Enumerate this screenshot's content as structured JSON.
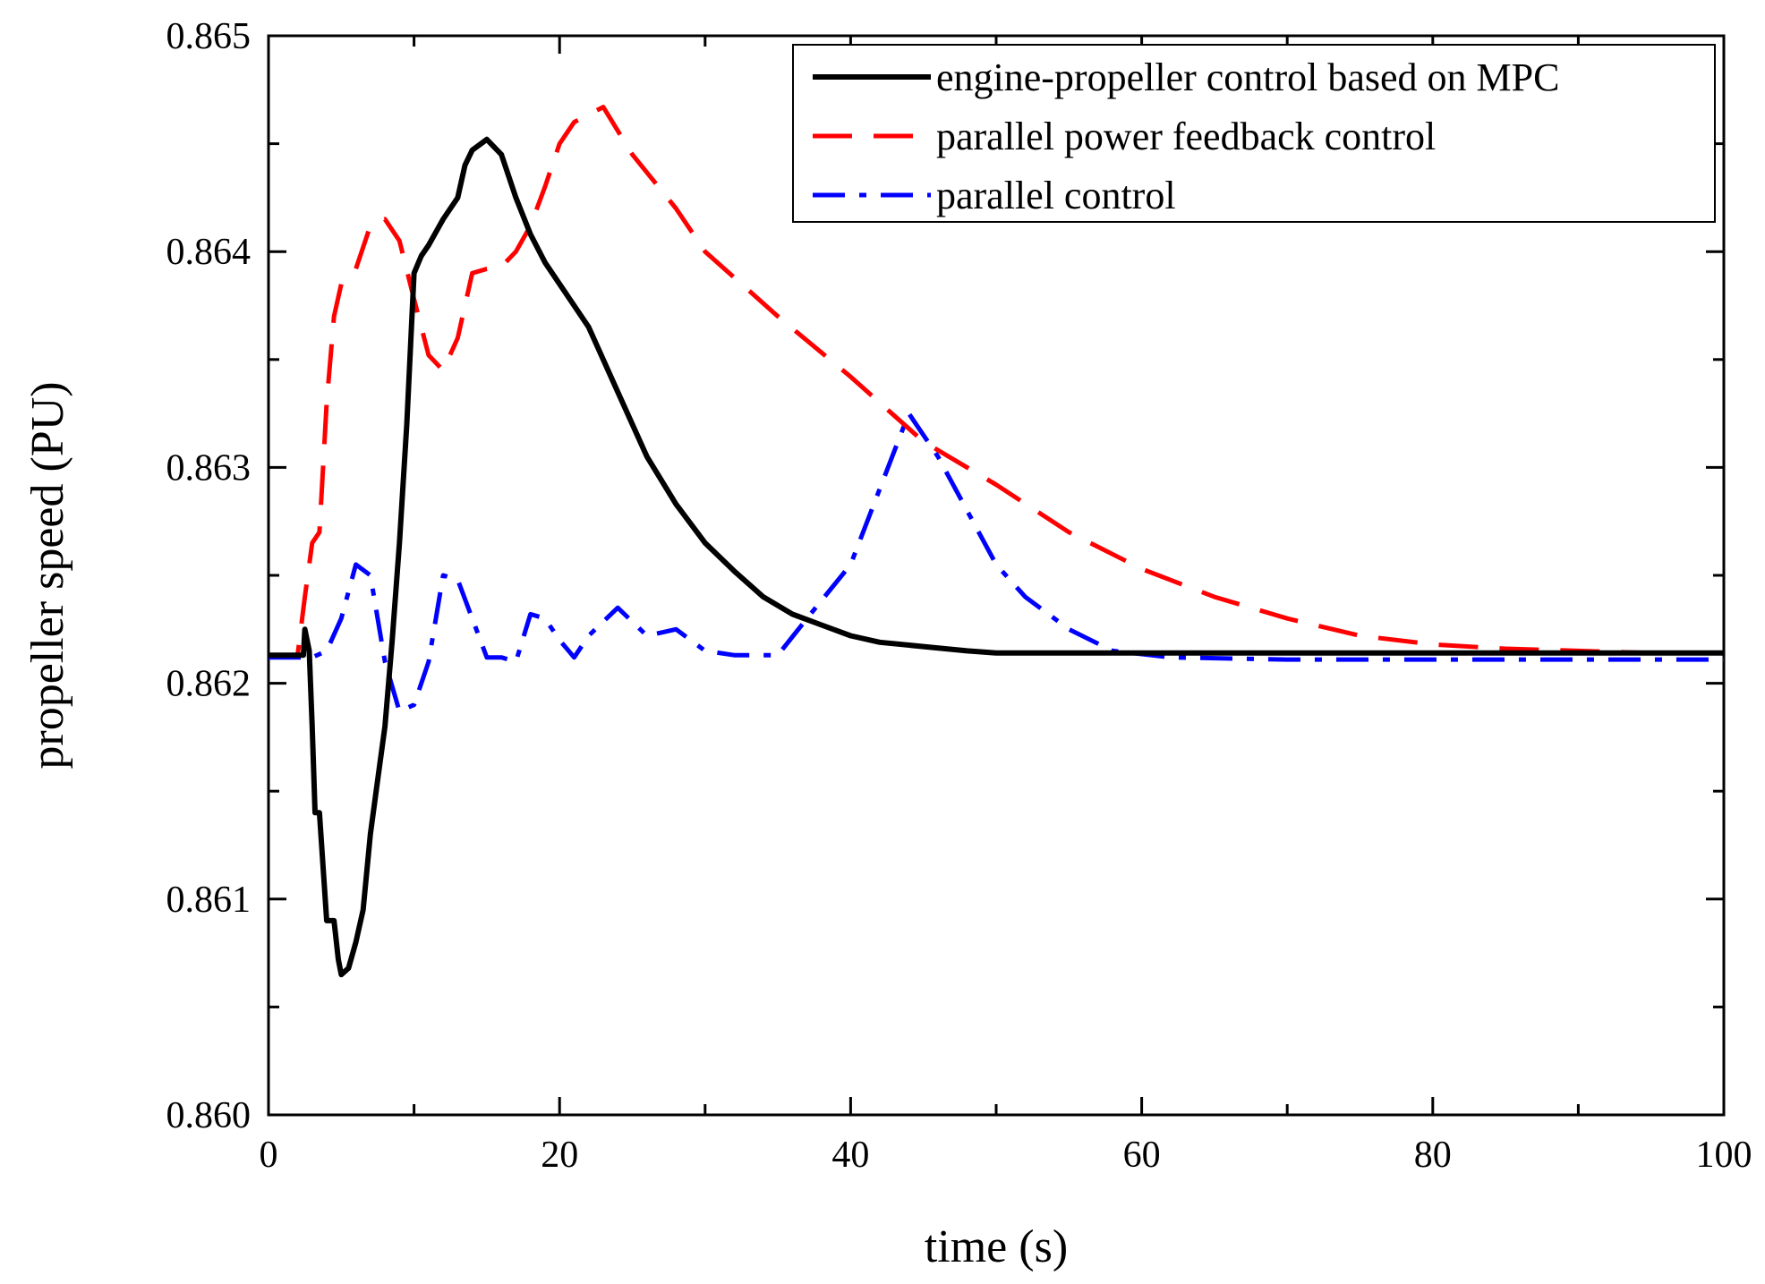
{
  "chart_data": {
    "type": "line",
    "title": "",
    "xlabel": "time (s)",
    "ylabel": "propeller speed (PU)",
    "xlim": [
      0,
      100
    ],
    "ylim": [
      0.86,
      0.865
    ],
    "x_major_ticks": [
      0,
      20,
      40,
      60,
      80,
      100
    ],
    "x_tick_labels": [
      "0",
      "20",
      "40",
      "60",
      "80",
      "100"
    ],
    "y_major_ticks": [
      0.86,
      0.861,
      0.862,
      0.863,
      0.864,
      0.865
    ],
    "y_tick_labels": [
      "0.860",
      "0.861",
      "0.862",
      "0.863",
      "0.864",
      "0.865"
    ],
    "grid": false,
    "legend_position": "top-right",
    "series": [
      {
        "name": "engine-propeller control based on MPC",
        "color": "#000000",
        "dash": "solid",
        "points": [
          [
            0,
            0.86213
          ],
          [
            2.4,
            0.86213
          ],
          [
            2.5,
            0.86225
          ],
          [
            2.8,
            0.86215
          ],
          [
            3.0,
            0.8618
          ],
          [
            3.2,
            0.8614
          ],
          [
            3.5,
            0.8614
          ],
          [
            4.0,
            0.8609
          ],
          [
            4.5,
            0.8609
          ],
          [
            4.8,
            0.86072
          ],
          [
            5.0,
            0.86065
          ],
          [
            5.5,
            0.86068
          ],
          [
            6.0,
            0.8608
          ],
          [
            6.5,
            0.86095
          ],
          [
            7.0,
            0.8613
          ],
          [
            7.5,
            0.86155
          ],
          [
            8.0,
            0.8618
          ],
          [
            8.5,
            0.8622
          ],
          [
            9.0,
            0.86265
          ],
          [
            9.5,
            0.8632
          ],
          [
            10.0,
            0.8639
          ],
          [
            10.5,
            0.86398
          ],
          [
            11.0,
            0.86403
          ],
          [
            12.0,
            0.86415
          ],
          [
            13.0,
            0.86425
          ],
          [
            13.5,
            0.8644
          ],
          [
            14.0,
            0.86447
          ],
          [
            15.0,
            0.86452
          ],
          [
            16.0,
            0.86445
          ],
          [
            17.0,
            0.86425
          ],
          [
            18.0,
            0.86408
          ],
          [
            19.0,
            0.86395
          ],
          [
            20.0,
            0.86385
          ],
          [
            22.0,
            0.86365
          ],
          [
            24.0,
            0.86335
          ],
          [
            26.0,
            0.86305
          ],
          [
            28.0,
            0.86283
          ],
          [
            30.0,
            0.86265
          ],
          [
            32.0,
            0.86252
          ],
          [
            34.0,
            0.8624
          ],
          [
            36.0,
            0.86232
          ],
          [
            38.0,
            0.86227
          ],
          [
            40.0,
            0.86222
          ],
          [
            42.0,
            0.86219
          ],
          [
            45.0,
            0.86217
          ],
          [
            48.0,
            0.86215
          ],
          [
            50.0,
            0.86214
          ],
          [
            60.0,
            0.86214
          ],
          [
            80.0,
            0.86214
          ],
          [
            100.0,
            0.86214
          ]
        ]
      },
      {
        "name": "parallel power feedback control",
        "color": "#ff0000",
        "dash": "dashed",
        "points": [
          [
            0,
            0.86213
          ],
          [
            2.0,
            0.86213
          ],
          [
            2.5,
            0.8624
          ],
          [
            3.0,
            0.86265
          ],
          [
            3.5,
            0.8627
          ],
          [
            4.0,
            0.8633
          ],
          [
            4.5,
            0.8637
          ],
          [
            5.0,
            0.86385
          ],
          [
            6.0,
            0.86392
          ],
          [
            7.0,
            0.86412
          ],
          [
            8.0,
            0.86415
          ],
          [
            9.0,
            0.86405
          ],
          [
            10.0,
            0.86378
          ],
          [
            11.0,
            0.86352
          ],
          [
            12.0,
            0.86345
          ],
          [
            13.0,
            0.8636
          ],
          [
            14.0,
            0.8639
          ],
          [
            15.0,
            0.86392
          ],
          [
            16.0,
            0.86393
          ],
          [
            17.0,
            0.864
          ],
          [
            18.0,
            0.86412
          ],
          [
            19.0,
            0.8643
          ],
          [
            20.0,
            0.8645
          ],
          [
            21.0,
            0.8646
          ],
          [
            23.0,
            0.86467
          ],
          [
            25.0,
            0.86445
          ],
          [
            28.0,
            0.8642
          ],
          [
            30.0,
            0.864
          ],
          [
            35.0,
            0.8637
          ],
          [
            40.0,
            0.86342
          ],
          [
            45.0,
            0.86312
          ],
          [
            50.0,
            0.86292
          ],
          [
            55.0,
            0.8627
          ],
          [
            60.0,
            0.86253
          ],
          [
            65.0,
            0.8624
          ],
          [
            70.0,
            0.8623
          ],
          [
            75.0,
            0.86222
          ],
          [
            80.0,
            0.86218
          ],
          [
            85.0,
            0.86216
          ],
          [
            90.0,
            0.86215
          ],
          [
            95.0,
            0.86214
          ],
          [
            100.0,
            0.86214
          ]
        ]
      },
      {
        "name": "parallel control",
        "color": "#0000ff",
        "dash": "dashdot",
        "points": [
          [
            0,
            0.86212
          ],
          [
            2.0,
            0.86212
          ],
          [
            3.0,
            0.86212
          ],
          [
            4.0,
            0.86215
          ],
          [
            5.0,
            0.8623
          ],
          [
            6.0,
            0.86255
          ],
          [
            7.0,
            0.8625
          ],
          [
            8.0,
            0.8621
          ],
          [
            9.0,
            0.86187
          ],
          [
            10.0,
            0.8619
          ],
          [
            11.0,
            0.8621
          ],
          [
            12.0,
            0.8625
          ],
          [
            13.0,
            0.86248
          ],
          [
            14.0,
            0.8623
          ],
          [
            15.0,
            0.86212
          ],
          [
            16.0,
            0.86212
          ],
          [
            17.0,
            0.8621
          ],
          [
            18.0,
            0.86232
          ],
          [
            19.0,
            0.8623
          ],
          [
            20.0,
            0.8622
          ],
          [
            21.0,
            0.86212
          ],
          [
            22.0,
            0.86222
          ],
          [
            24.0,
            0.86235
          ],
          [
            26.0,
            0.86222
          ],
          [
            28.0,
            0.86225
          ],
          [
            30.0,
            0.86215
          ],
          [
            32.0,
            0.86213
          ],
          [
            35.0,
            0.86213
          ],
          [
            37.0,
            0.8623
          ],
          [
            40.0,
            0.86255
          ],
          [
            42.0,
            0.8629
          ],
          [
            44.0,
            0.86325
          ],
          [
            46.0,
            0.86305
          ],
          [
            48.0,
            0.8628
          ],
          [
            50.0,
            0.86255
          ],
          [
            52.0,
            0.8624
          ],
          [
            55.0,
            0.86225
          ],
          [
            58.0,
            0.86215
          ],
          [
            62.0,
            0.86212
          ],
          [
            70.0,
            0.86211
          ],
          [
            80.0,
            0.86211
          ],
          [
            90.0,
            0.86211
          ],
          [
            100.0,
            0.86211
          ]
        ]
      }
    ]
  }
}
